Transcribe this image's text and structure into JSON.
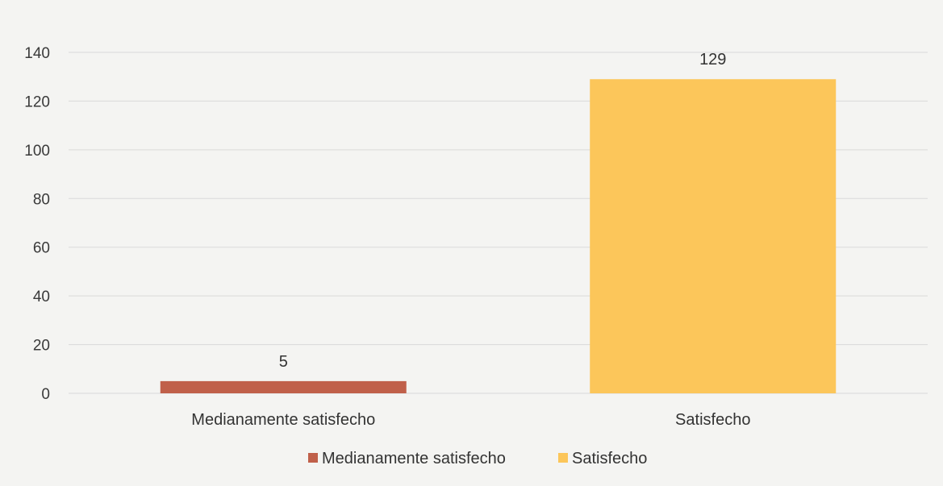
{
  "chart_data": {
    "type": "bar",
    "categories": [
      "Medianamente satisfecho",
      "Satisfecho"
    ],
    "series": [
      {
        "name": "Medianamente satisfecho",
        "values": [
          5,
          null
        ],
        "color": "#c0604a"
      },
      {
        "name": "Satisfecho",
        "values": [
          null,
          129
        ],
        "color": "#fcc65a"
      }
    ],
    "data_labels": [
      "5",
      "129"
    ],
    "ylim": [
      0,
      140
    ],
    "yticks": [
      0,
      20,
      40,
      60,
      80,
      100,
      120,
      140
    ],
    "grid": true,
    "legend_position": "bottom",
    "title": "",
    "xlabel": "",
    "ylabel": ""
  }
}
